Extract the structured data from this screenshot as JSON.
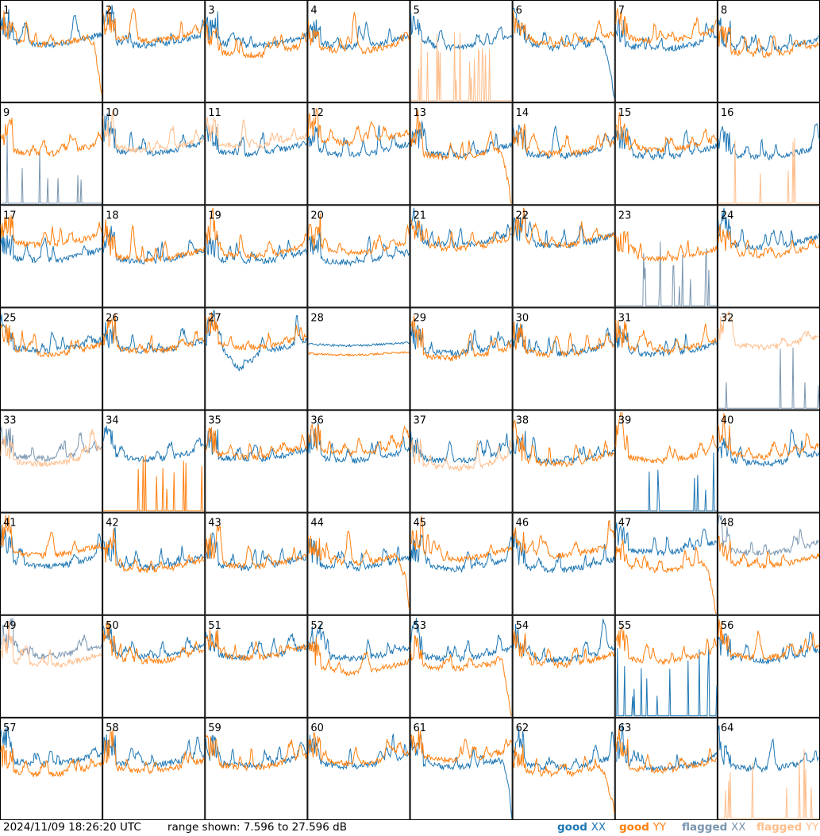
{
  "chart_data": {
    "type": "line",
    "grid": {
      "rows": 8,
      "cols": 8
    },
    "tiles": [
      "1",
      "2",
      "3",
      "4",
      "5",
      "6",
      "7",
      "8",
      "9",
      "10",
      "11",
      "12",
      "13",
      "14",
      "15",
      "16",
      "17",
      "18",
      "19",
      "20",
      "21",
      "22",
      "23",
      "24",
      "25",
      "26",
      "27",
      "28",
      "29",
      "30",
      "31",
      "32",
      "33",
      "34",
      "35",
      "36",
      "37",
      "38",
      "39",
      "40",
      "41",
      "42",
      "43",
      "44",
      "45",
      "46",
      "47",
      "48",
      "49",
      "50",
      "51",
      "52",
      "53",
      "54",
      "55",
      "56",
      "57",
      "58",
      "59",
      "60",
      "61",
      "62",
      "63",
      "64"
    ],
    "y_range_db": [
      7.596,
      27.596
    ],
    "series": [
      {
        "name": "good XX",
        "color": "#1f77b4"
      },
      {
        "name": "good YY",
        "color": "#ff7f0e"
      },
      {
        "name": "flagged XX",
        "color": "#7a96b0"
      },
      {
        "name": "flagged YY",
        "color": "#ffbe8c"
      }
    ],
    "tile_status": {
      "5": {
        "yy": "flagged"
      },
      "9": {
        "xx": "flagged"
      },
      "10": {
        "yy": "flagged"
      },
      "11": {
        "yy": "flagged"
      },
      "16": {
        "yy": "flagged"
      },
      "23": {
        "xx": "flagged"
      },
      "32": {
        "xx": "flagged",
        "yy": "flagged"
      },
      "33": {
        "xx": "flagged",
        "yy": "flagged"
      },
      "37": {
        "yy": "flagged"
      },
      "48": {
        "xx": "flagged"
      },
      "49": {
        "xx": "flagged",
        "yy": "flagged"
      },
      "64": {
        "yy": "flagged"
      }
    }
  },
  "footer": {
    "timestamp": "2024/11/09 18:26:20 UTC",
    "range_text": "range shown: 7.596 to 27.596 dB"
  },
  "legend": [
    {
      "label": "good",
      "pol": "XX",
      "color": "#1f77b4"
    },
    {
      "label": "good",
      "pol": "YY",
      "color": "#ff7f0e"
    },
    {
      "label": "flagged",
      "pol": "XX",
      "color": "#7a96b0"
    },
    {
      "label": "flagged",
      "pol": "YY",
      "color": "#ffbe8c"
    }
  ]
}
